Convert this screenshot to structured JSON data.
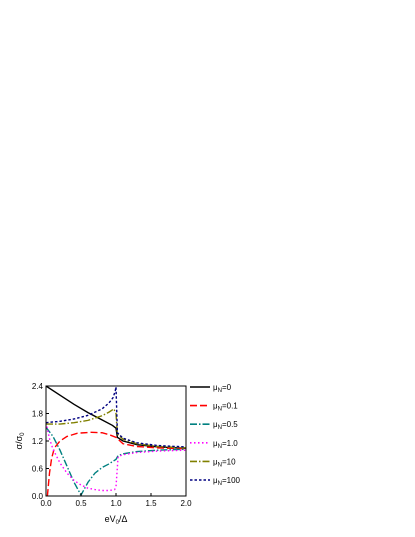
{
  "chart_data": {
    "type": "line",
    "title": "",
    "xlabel": {
      "main": "eV",
      "sub": "0",
      "tail": "/Δ"
    },
    "ylabel": {
      "main": "σ/σ",
      "sub": "0"
    },
    "xlim": [
      0,
      2.0
    ],
    "ylim": [
      0,
      2.4
    ],
    "xticks": [
      "0.0",
      "0.5",
      "1.0",
      "1.5",
      "2.0"
    ],
    "yticks": [
      "0.0",
      "0.6",
      "1.2",
      "1.8",
      "2.4"
    ],
    "grid": false,
    "legend_position": "right",
    "series": [
      {
        "name": "μ=0",
        "label_main": "μ",
        "label_sub": "N",
        "label_tail": "=0",
        "color": "#000000",
        "dash": "none",
        "x": [
          0,
          0.2,
          0.4,
          0.6,
          0.8,
          0.95,
          1.0,
          1.02,
          1.1,
          1.3,
          1.6,
          2.0
        ],
        "y": [
          2.4,
          2.2,
          2.0,
          1.82,
          1.66,
          1.54,
          1.48,
          1.28,
          1.2,
          1.12,
          1.07,
          1.04
        ]
      },
      {
        "name": "μ=0.1",
        "label_main": "μ",
        "label_sub": "N",
        "label_tail": "=0.1",
        "color": "#ff0000",
        "dash": "7,3",
        "x": [
          0.02,
          0.05,
          0.08,
          0.12,
          0.2,
          0.3,
          0.45,
          0.65,
          0.8,
          0.9,
          1.0,
          1.1,
          1.3,
          1.6,
          2.0
        ],
        "y": [
          0.0,
          0.5,
          0.82,
          1.05,
          1.2,
          1.3,
          1.37,
          1.39,
          1.38,
          1.34,
          1.28,
          1.14,
          1.08,
          1.05,
          1.03
        ]
      },
      {
        "name": "μ=0.5",
        "label_main": "μ",
        "label_sub": "N",
        "label_tail": "=0.5",
        "color": "#008080",
        "dash": "7,2,1.5,2",
        "x": [
          0,
          0.1,
          0.2,
          0.3,
          0.4,
          0.5,
          0.6,
          0.7,
          0.8,
          0.9,
          1.0,
          1.03,
          1.1,
          1.3,
          1.6,
          2.0
        ],
        "y": [
          1.5,
          1.3,
          1.0,
          0.65,
          0.3,
          0.02,
          0.3,
          0.5,
          0.62,
          0.7,
          0.8,
          0.88,
          0.92,
          0.97,
          1.0,
          1.02
        ]
      },
      {
        "name": "μ=1.0",
        "label_main": "μ",
        "label_sub": "N",
        "label_tail": "=1.0",
        "color": "#ff00ff",
        "dash": "1.5,2.5",
        "x": [
          0,
          0.05,
          0.1,
          0.2,
          0.3,
          0.4,
          0.5,
          0.6,
          0.7,
          0.8,
          0.9,
          0.98,
          1.0,
          1.03,
          1.1,
          1.3,
          1.6,
          2.0
        ],
        "y": [
          1.6,
          1.25,
          1.02,
          0.72,
          0.5,
          0.34,
          0.24,
          0.17,
          0.14,
          0.12,
          0.12,
          0.14,
          0.2,
          0.86,
          0.9,
          0.95,
          0.98,
          1.0
        ]
      },
      {
        "name": "μ=10",
        "label_main": "μ",
        "label_sub": "N",
        "label_tail": "=10",
        "color": "#808000",
        "dash": "7,2,1.5,2",
        "x": [
          0,
          0.2,
          0.4,
          0.6,
          0.8,
          0.9,
          0.97,
          1.0,
          1.02,
          1.1,
          1.3,
          1.6,
          2.0
        ],
        "y": [
          1.57,
          1.57,
          1.6,
          1.65,
          1.75,
          1.83,
          1.9,
          1.8,
          1.35,
          1.24,
          1.14,
          1.08,
          1.05
        ]
      },
      {
        "name": "μ=100",
        "label_main": "μ",
        "label_sub": "N",
        "label_tail": "=100",
        "color": "#000080",
        "dash": "2.5,2",
        "x": [
          0,
          0.2,
          0.4,
          0.6,
          0.8,
          0.9,
          0.96,
          0.99,
          1.0,
          1.02,
          1.1,
          1.3,
          1.6,
          2.0
        ],
        "y": [
          1.6,
          1.63,
          1.68,
          1.76,
          1.9,
          2.03,
          2.15,
          2.3,
          2.38,
          1.38,
          1.26,
          1.16,
          1.1,
          1.07
        ]
      }
    ]
  }
}
